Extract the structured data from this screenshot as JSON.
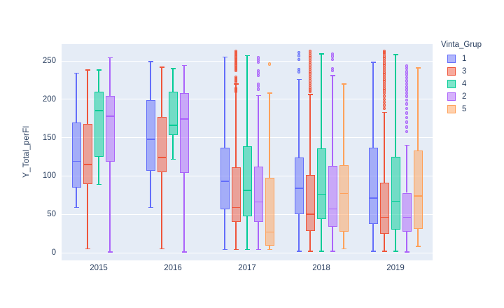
{
  "figure": {
    "y_axis_title": "Y_Total_perFl",
    "legend": {
      "title": "Vinta_Grup",
      "items": [
        {
          "label": "1",
          "color": "#636efa"
        },
        {
          "label": "3",
          "color": "#EF553B"
        },
        {
          "label": "4",
          "color": "#00cc96"
        },
        {
          "label": "2",
          "color": "#ab63fa"
        },
        {
          "label": "5",
          "color": "#FFA15A"
        }
      ]
    },
    "plot_bg": "#e5ecf6",
    "text_color": "#2a3f5f"
  },
  "chart_data": {
    "type": "box",
    "title": "",
    "xlabel": "",
    "ylabel": "Y_Total_perFl",
    "categories": [
      "2015",
      "2016",
      "2017",
      "2018",
      "2019"
    ],
    "yticks": [
      0,
      50,
      100,
      150,
      200,
      250
    ],
    "ylim": [
      -10,
      272
    ],
    "grid": true,
    "legend_title": "Vinta_Grup",
    "legend_position": "right",
    "series": [
      {
        "name": "1",
        "color": "#636efa",
        "data": [
          {
            "min": 59,
            "q1": 85,
            "med": 119,
            "q3": 170,
            "max": 234,
            "out": []
          },
          {
            "min": 59,
            "q1": 107,
            "med": 148,
            "q3": 199,
            "max": 249,
            "out": []
          },
          {
            "min": 4,
            "q1": 57,
            "med": 93,
            "q3": 137,
            "max": 255,
            "out": []
          },
          {
            "min": 2,
            "q1": 50,
            "med": 84,
            "q3": 124,
            "max": 226,
            "out": [
              261,
              257,
              252,
              239,
              236
            ]
          },
          {
            "min": 2,
            "q1": 37,
            "med": 71,
            "q3": 137,
            "max": 248,
            "out": []
          }
        ]
      },
      {
        "name": "3",
        "color": "#EF553B",
        "data": [
          {
            "min": 5,
            "q1": 89,
            "med": 115,
            "q3": 168,
            "max": 238,
            "out": []
          },
          {
            "min": 5,
            "q1": 105,
            "med": 124,
            "q3": 177,
            "max": 242,
            "out": []
          },
          {
            "min": 4,
            "q1": 40,
            "med": 59,
            "q3": 111,
            "max": 220,
            "out": [
              263,
              261,
              259,
              257,
              255,
              253,
              251,
              249,
              247,
              245,
              243,
              241,
              239,
              237,
              229,
              227,
              225,
              223,
              214,
              212,
              210
            ]
          },
          {
            "min": 2,
            "q1": 28,
            "med": 50,
            "q3": 101,
            "max": 206,
            "out": [
              263,
              260,
              257,
              254,
              251,
              248,
              245,
              242,
              239,
              236,
              233,
              230,
              227,
              224,
              221,
              218,
              215,
              212,
              210
            ]
          },
          {
            "min": 2,
            "q1": 25,
            "med": 46,
            "q3": 91,
            "max": 183,
            "out": [
              263,
              261,
              259,
              256,
              253,
              250,
              247,
              244,
              241,
              238,
              235,
              232,
              229,
              226,
              223,
              220,
              217,
              214,
              211,
              208,
              204,
              200,
              196,
              192,
              188
            ]
          }
        ]
      },
      {
        "name": "4",
        "color": "#00cc96",
        "data": [
          {
            "min": 89,
            "q1": 125,
            "med": 185,
            "q3": 210,
            "max": 238,
            "out": []
          },
          {
            "min": 122,
            "q1": 153,
            "med": 166,
            "q3": 210,
            "max": 240,
            "out": []
          },
          {
            "min": 4,
            "q1": 47,
            "med": 81,
            "q3": 139,
            "max": 257,
            "out": []
          },
          {
            "min": 2,
            "q1": 44,
            "med": 76,
            "q3": 136,
            "max": 259,
            "out": []
          },
          {
            "min": 2,
            "q1": 30,
            "med": 67,
            "q3": 125,
            "max": 258,
            "out": []
          }
        ]
      },
      {
        "name": "2",
        "color": "#ab63fa",
        "data": [
          {
            "min": 1,
            "q1": 119,
            "med": 178,
            "q3": 204,
            "max": 254,
            "out": []
          },
          {
            "min": 1,
            "q1": 104,
            "med": 174,
            "q3": 208,
            "max": 244,
            "out": []
          },
          {
            "min": 4,
            "q1": 40,
            "med": 66,
            "q3": 112,
            "max": 205,
            "out": [
              254,
              251,
              248,
              237,
              234,
              231,
              220,
              217,
              213
            ]
          },
          {
            "min": 2,
            "q1": 34,
            "med": 57,
            "q3": 113,
            "max": 231,
            "out": [
              259,
              256,
              252,
              240,
              237
            ]
          },
          {
            "min": 1,
            "q1": 27,
            "med": 46,
            "q3": 78,
            "max": 140,
            "out": [
              243,
              240,
              236,
              232,
              228,
              224,
              220,
              216,
              212,
              208,
              204,
              199,
              194,
              188,
              182,
              176,
              170,
              164,
              158
            ]
          }
        ]
      },
      {
        "name": "5",
        "color": "#FFA15A",
        "data": [
          null,
          null,
          {
            "min": 4,
            "q1": 9,
            "med": 27,
            "q3": 98,
            "max": 208,
            "out": [
              246
            ]
          },
          {
            "min": 5,
            "q1": 27,
            "med": 77,
            "q3": 114,
            "max": 220,
            "out": []
          },
          {
            "min": 8,
            "q1": 31,
            "med": 74,
            "q3": 133,
            "max": 241,
            "out": []
          }
        ]
      }
    ]
  }
}
